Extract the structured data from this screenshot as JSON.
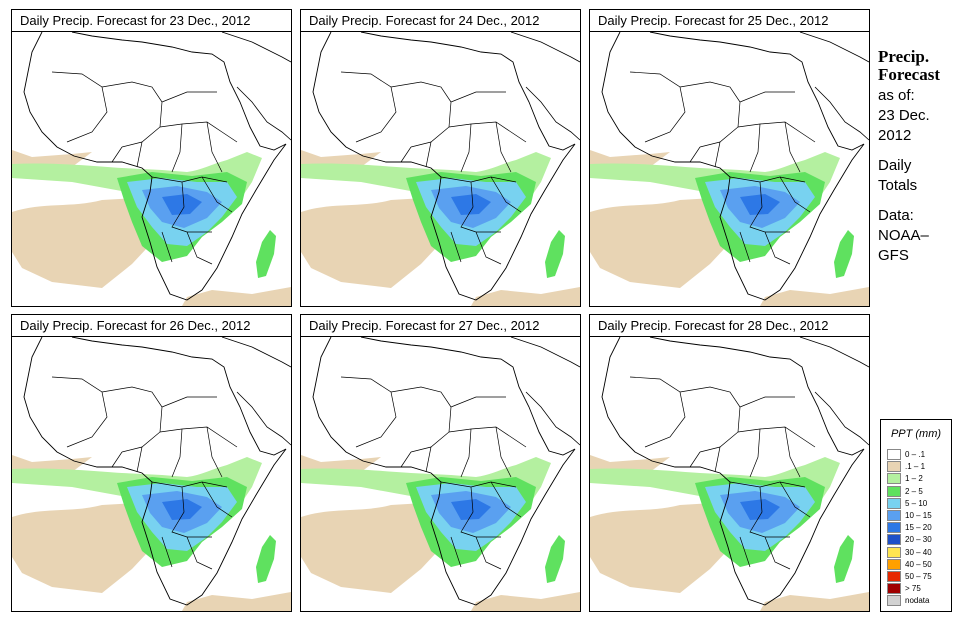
{
  "panels": [
    {
      "title": "Daily Precip. Forecast for  23 Dec., 2012"
    },
    {
      "title": "Daily Precip. Forecast for  24 Dec., 2012"
    },
    {
      "title": "Daily Precip. Forecast for  25 Dec., 2012"
    },
    {
      "title": "Daily Precip. Forecast for  26 Dec., 2012"
    },
    {
      "title": "Daily Precip. Forecast for  27 Dec., 2012"
    },
    {
      "title": "Daily Precip. Forecast for  28 Dec., 2012"
    }
  ],
  "side": {
    "title1": "Precip.",
    "title2": "Forecast",
    "asof": "as of:",
    "date1": "23 Dec.",
    "date2": "2012",
    "daily1": "Daily",
    "daily2": "Totals",
    "data1": "Data:",
    "data2": "NOAA–",
    "data3": "GFS"
  },
  "legend": {
    "title": "PPT (mm)",
    "items": [
      {
        "label": "0 – .1",
        "color": "#ffffff"
      },
      {
        "label": ".1 – 1",
        "color": "#e8d4b4"
      },
      {
        "label": "1 – 2",
        "color": "#b4f0a0"
      },
      {
        "label": "2 – 5",
        "color": "#5fe15f"
      },
      {
        "label": "5 – 10",
        "color": "#78d2f0"
      },
      {
        "label": "10 – 15",
        "color": "#5aa0f0"
      },
      {
        "label": "15 – 20",
        "color": "#2d78e6"
      },
      {
        "label": "20 – 30",
        "color": "#1e50c8"
      },
      {
        "label": "30 – 40",
        "color": "#ffe650"
      },
      {
        "label": "40 – 50",
        "color": "#ffa000"
      },
      {
        "label": "50 – 75",
        "color": "#e62800"
      },
      {
        "label": "> 75",
        "color": "#a00000"
      },
      {
        "label": "nodata",
        "color": "#d2d2d2"
      }
    ]
  }
}
